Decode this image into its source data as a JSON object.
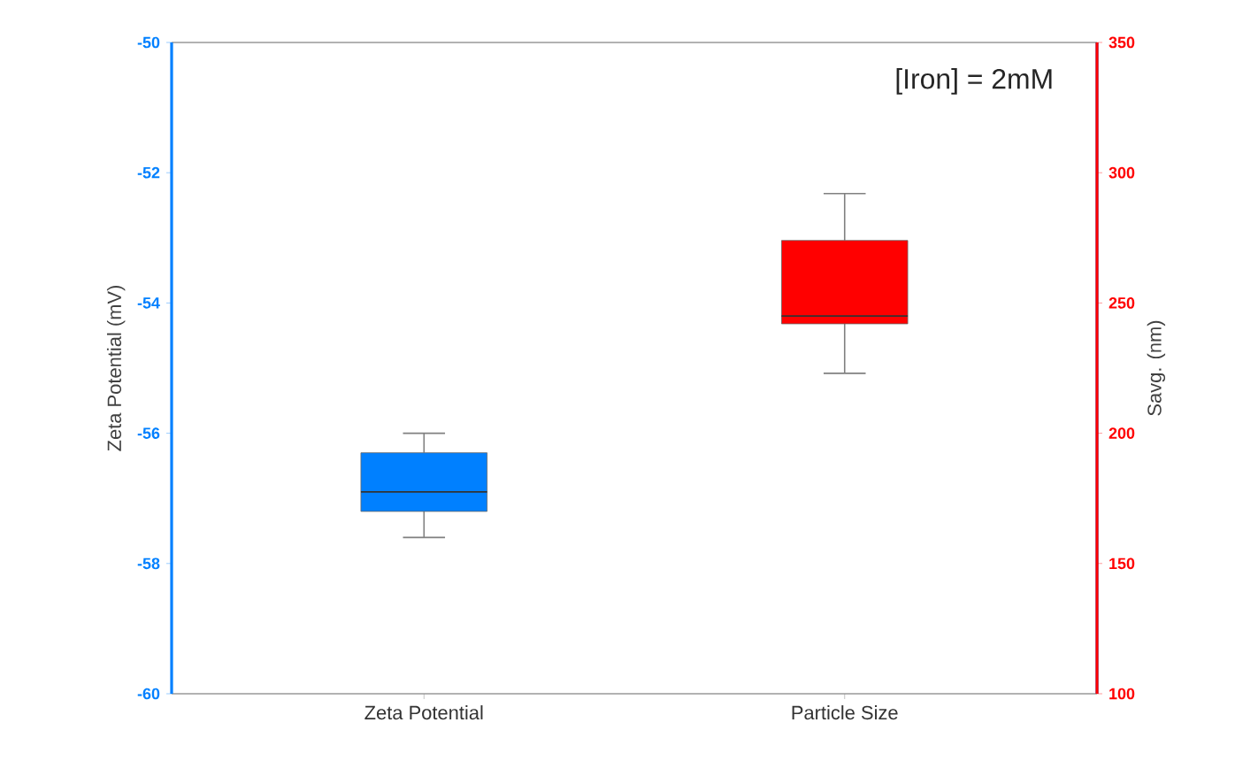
{
  "chart_data": {
    "type": "box",
    "categories": [
      "Zeta Potential",
      "Particle Size"
    ],
    "ylabel": "Zeta Potential (mV)",
    "y2label": "Savg. (nm)",
    "ylim": [
      -60,
      -50
    ],
    "yticks": [
      -60,
      -58,
      -56,
      -54,
      -52,
      -50
    ],
    "y2lim": [
      100,
      350
    ],
    "y2ticks": [
      100,
      150,
      200,
      250,
      300,
      350
    ],
    "annotations": [
      "[Iron] = 2mM"
    ],
    "series": [
      {
        "color": "#0080ff",
        "boxes": [
          {
            "low": -57.6,
            "q1": -57.2,
            "median": -56.9,
            "q3": -56.3,
            "high": -56.0
          },
          null
        ]
      },
      {
        "color": "#ff0000",
        "axis": "y2",
        "boxes": [
          null,
          {
            "low": 223,
            "q1": 242,
            "median": 245,
            "q3": 274,
            "high": 292
          }
        ]
      }
    ]
  }
}
